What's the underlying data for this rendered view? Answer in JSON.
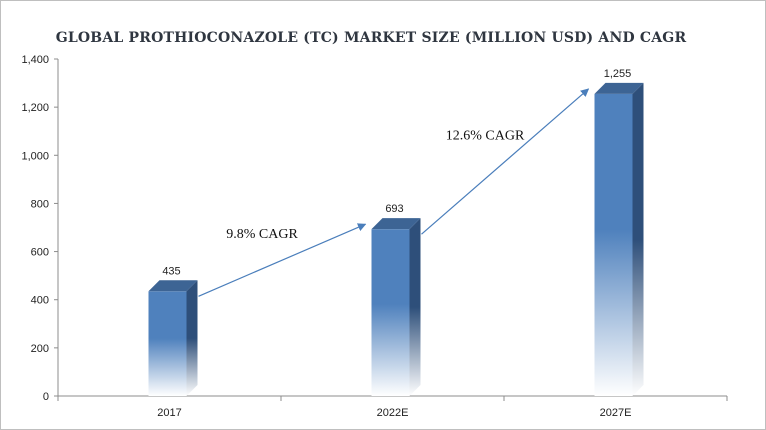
{
  "chart_data": {
    "type": "bar",
    "title": "GLOBAL PROTHIOCONAZOLE (TC) MARKET SIZE (MILLION USD) AND CAGR",
    "categories": [
      "2017",
      "2022E",
      "2027E"
    ],
    "values": [
      435,
      693,
      1255
    ],
    "data_labels": [
      "435",
      "693",
      "1,255"
    ],
    "ylim": [
      0,
      1400
    ],
    "yticks": [
      0,
      200,
      400,
      600,
      800,
      1000,
      1200,
      1400
    ],
    "ytick_labels": [
      "0",
      "200",
      "400",
      "600",
      "800",
      "1,000",
      "1,200",
      "1,400"
    ],
    "xlabel": "",
    "ylabel": "",
    "grid": false,
    "legend": "none",
    "bar_color": "#4f81bd",
    "bar_side_color": "#2e4f7a",
    "bar_top_color": "#3d6494",
    "axis_color": "#8c8c8c",
    "arrow_color": "#4a7ebb",
    "annotations": [
      {
        "text": "9.8% CAGR",
        "from_category": "2017",
        "to_category": "2022E"
      },
      {
        "text": "12.6% CAGR",
        "from_category": "2022E",
        "to_category": "2027E"
      }
    ]
  }
}
